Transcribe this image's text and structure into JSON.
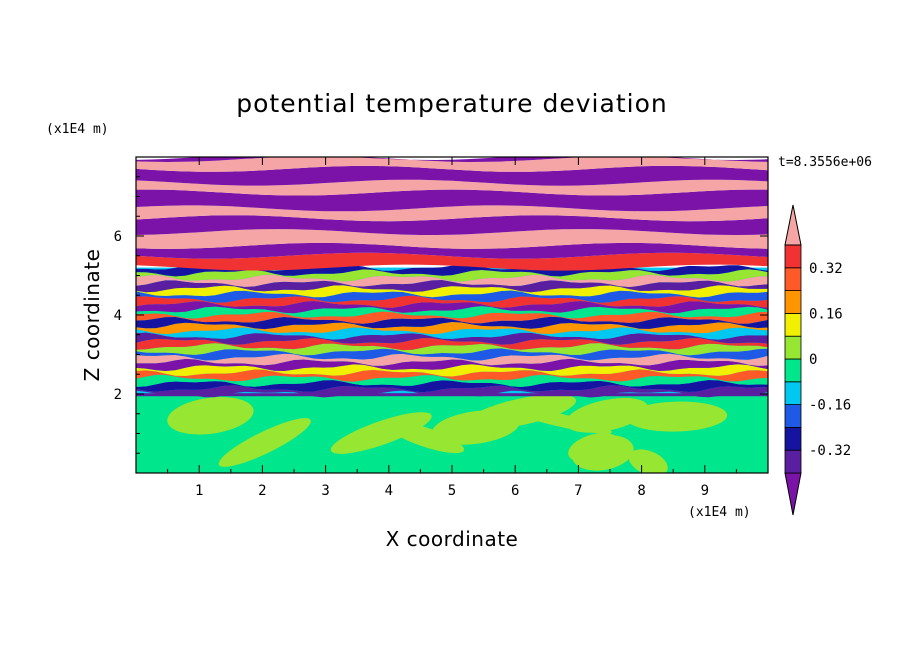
{
  "chart_data": {
    "type": "heatmap",
    "title": "potential temperature deviation",
    "xlabel": "X coordinate",
    "ylabel": "Z coordinate",
    "x_unit": "(x1E4 m)",
    "y_unit": "(x1E4 m)",
    "time_label": "t=8.3556e+06",
    "xlim": [
      0,
      10
    ],
    "ylim": [
      0,
      8
    ],
    "x_ticks": [
      1,
      2,
      3,
      4,
      5,
      6,
      7,
      8,
      9
    ],
    "y_ticks": [
      2,
      4,
      6
    ],
    "colorbar": {
      "levels": [
        -0.4,
        -0.32,
        -0.24,
        -0.16,
        -0.08,
        0,
        0.08,
        0.16,
        0.24,
        0.32,
        0.4
      ],
      "labeled_ticks": [
        "0.32",
        "0.16",
        "0",
        "-0.16",
        "-0.32"
      ],
      "labeled_values": [
        0.32,
        0.16,
        0,
        -0.16,
        -0.32
      ],
      "bands_bottom_to_top": [
        {
          "range": "below -0.4",
          "color": "#7b13a8"
        },
        {
          "range": "-0.4 to -0.32",
          "color": "#5a1ea0"
        },
        {
          "range": "-0.32 to -0.24",
          "color": "#1414a0"
        },
        {
          "range": "-0.24 to -0.16",
          "color": "#1e5ae6"
        },
        {
          "range": "-0.16 to -0.08",
          "color": "#00c8f0"
        },
        {
          "range": "-0.08 to 0",
          "color": "#00e68c"
        },
        {
          "range": "0 to 0.08",
          "color": "#96e632"
        },
        {
          "range": "0.08 to 0.16",
          "color": "#f0f000"
        },
        {
          "range": "0.16 to 0.24",
          "color": "#ff9600"
        },
        {
          "range": "0.24 to 0.32",
          "color": "#ff5a28"
        },
        {
          "range": "0.32 to 0.4",
          "color": "#f03232"
        },
        {
          "range": "above 0.4",
          "color": "#f5a5a5"
        }
      ]
    },
    "field_description": {
      "z_below_2": "values near -0.08 to 0.08 (green and light green)",
      "z_2_to_5": "turbulent wave region spanning full colour range",
      "z_5_to_8": "alternating horizontal bands of above 0.4 (pink) and below -0.4 (purple)"
    }
  }
}
